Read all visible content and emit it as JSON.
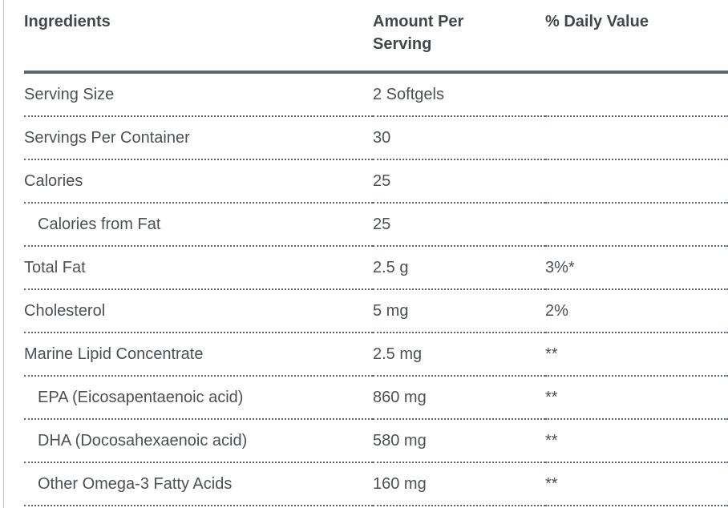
{
  "table": {
    "columns": [
      {
        "label": "Ingredients"
      },
      {
        "label": "Amount Per Serving"
      },
      {
        "label": "% Daily Value"
      }
    ],
    "rows": [
      {
        "ingredient": "Serving Size",
        "amount": "2 Softgels",
        "daily_value": "",
        "indent": false
      },
      {
        "ingredient": "Servings Per Container",
        "amount": "30",
        "daily_value": "",
        "indent": false
      },
      {
        "ingredient": "Calories",
        "amount": "25",
        "daily_value": "",
        "indent": false
      },
      {
        "ingredient": "Calories from Fat",
        "amount": "25",
        "daily_value": "",
        "indent": true
      },
      {
        "ingredient": "Total Fat",
        "amount": "2.5 g",
        "daily_value": "3%*",
        "indent": false
      },
      {
        "ingredient": "Cholesterol",
        "amount": "5 mg",
        "daily_value": "2%",
        "indent": false
      },
      {
        "ingredient": "Marine Lipid Concentrate",
        "amount": "2.5 mg",
        "daily_value": "**",
        "indent": false
      },
      {
        "ingredient": "EPA (Eicosapentaenoic acid)",
        "amount": "860 mg",
        "daily_value": "**",
        "indent": true
      },
      {
        "ingredient": "DHA (Docosahexaenoic acid)",
        "amount": "580 mg",
        "daily_value": "**",
        "indent": true
      },
      {
        "ingredient": "Other Omega-3 Fatty Acids",
        "amount": "160 mg",
        "daily_value": "**",
        "indent": true
      }
    ]
  },
  "colors": {
    "header_text": "#42474c",
    "body_text": "#4c5055",
    "rule": "#5b6670",
    "page_edge": "#c6c6c6"
  }
}
